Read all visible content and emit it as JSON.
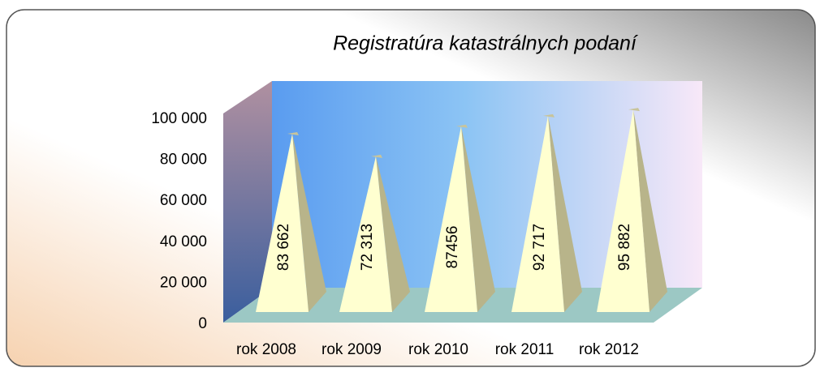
{
  "chart_data": {
    "type": "pyramid3d",
    "title": "Registratúra katastrálnych podaní",
    "categories": [
      "rok 2008",
      "rok 2009",
      "rok 2010",
      "rok 2011",
      "rok 2012"
    ],
    "values": [
      83662,
      72313,
      87456,
      92717,
      95882
    ],
    "value_labels": [
      "83 662",
      "72 313",
      "87456",
      "92 717",
      "95 882"
    ],
    "color": "#ffffd0",
    "ylim": [
      0,
      100000
    ],
    "yticks": [
      0,
      {
        "value": 20000,
        "label": "20 000"
      },
      {
        "value": 40000,
        "label": "40 000"
      },
      {
        "value": 60000,
        "label": "60 000"
      },
      {
        "value": 80000,
        "label": "80 000"
      },
      {
        "value": 100000,
        "label": "100 000"
      }
    ]
  }
}
